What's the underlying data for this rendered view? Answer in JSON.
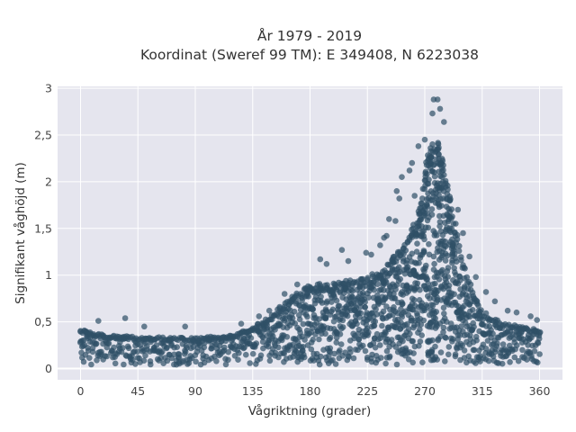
{
  "chart_data": {
    "type": "scatter",
    "title_lines": [
      "År 1979 - 2019",
      "Koordinat (Sweref 99 TM): E 349408, N 6223038"
    ],
    "xlabel": "Vågriktning (grader)",
    "ylabel": "Signifikant våghöjd (m)",
    "xlim": [
      -18,
      378
    ],
    "ylim": [
      -0.12,
      3.02
    ],
    "x_ticks": [
      0,
      45,
      90,
      135,
      180,
      225,
      270,
      315,
      360
    ],
    "x_tick_labels": [
      "0",
      "45",
      "90",
      "135",
      "180",
      "225",
      "270",
      "315",
      "360"
    ],
    "y_ticks": [
      0,
      0.5,
      1,
      1.5,
      2,
      2.5,
      3
    ],
    "y_tick_labels": [
      "0",
      "0,5",
      "1",
      "1,5",
      "2",
      "2,5",
      "3"
    ],
    "grid": true,
    "marker_color": "#2f5066",
    "background_color": "#e5e5ee",
    "upper_envelope": {
      "x": [
        0,
        20,
        45,
        90,
        120,
        135,
        150,
        165,
        180,
        200,
        225,
        240,
        255,
        265,
        270,
        275,
        280,
        285,
        290,
        300,
        310,
        315,
        330,
        345,
        360
      ],
      "y": [
        0.42,
        0.36,
        0.34,
        0.33,
        0.36,
        0.44,
        0.58,
        0.78,
        0.9,
        0.92,
        0.98,
        1.1,
        1.35,
        1.7,
        2.15,
        2.4,
        2.45,
        2.2,
        1.85,
        1.15,
        0.75,
        0.62,
        0.5,
        0.45,
        0.42
      ]
    },
    "outliers": [
      {
        "x": 277,
        "y": 2.88
      },
      {
        "x": 280,
        "y": 2.88
      },
      {
        "x": 276,
        "y": 2.73
      },
      {
        "x": 282,
        "y": 2.78
      },
      {
        "x": 285,
        "y": 2.64
      },
      {
        "x": 265,
        "y": 2.38
      },
      {
        "x": 270,
        "y": 2.45
      },
      {
        "x": 260,
        "y": 2.2
      },
      {
        "x": 252,
        "y": 2.05
      },
      {
        "x": 248,
        "y": 1.9
      },
      {
        "x": 250,
        "y": 1.82
      },
      {
        "x": 258,
        "y": 2.12
      },
      {
        "x": 262,
        "y": 1.85
      },
      {
        "x": 242,
        "y": 1.6
      },
      {
        "x": 247,
        "y": 1.58
      },
      {
        "x": 238,
        "y": 1.4
      },
      {
        "x": 240,
        "y": 1.42
      },
      {
        "x": 228,
        "y": 1.22
      },
      {
        "x": 224,
        "y": 1.24
      },
      {
        "x": 205,
        "y": 1.27
      },
      {
        "x": 188,
        "y": 1.17
      },
      {
        "x": 193,
        "y": 1.12
      },
      {
        "x": 210,
        "y": 1.15
      },
      {
        "x": 235,
        "y": 1.32
      },
      {
        "x": 296,
        "y": 1.7
      },
      {
        "x": 300,
        "y": 1.45
      },
      {
        "x": 305,
        "y": 1.2
      },
      {
        "x": 310,
        "y": 0.98
      },
      {
        "x": 318,
        "y": 0.82
      },
      {
        "x": 325,
        "y": 0.72
      },
      {
        "x": 335,
        "y": 0.62
      },
      {
        "x": 342,
        "y": 0.6
      },
      {
        "x": 353,
        "y": 0.56
      },
      {
        "x": 358,
        "y": 0.52
      },
      {
        "x": 35,
        "y": 0.54
      },
      {
        "x": 14,
        "y": 0.51
      },
      {
        "x": 82,
        "y": 0.45
      },
      {
        "x": 50,
        "y": 0.45
      },
      {
        "x": 126,
        "y": 0.48
      },
      {
        "x": 140,
        "y": 0.56
      },
      {
        "x": 148,
        "y": 0.62
      },
      {
        "x": 160,
        "y": 0.8
      },
      {
        "x": 170,
        "y": 0.9
      }
    ]
  }
}
